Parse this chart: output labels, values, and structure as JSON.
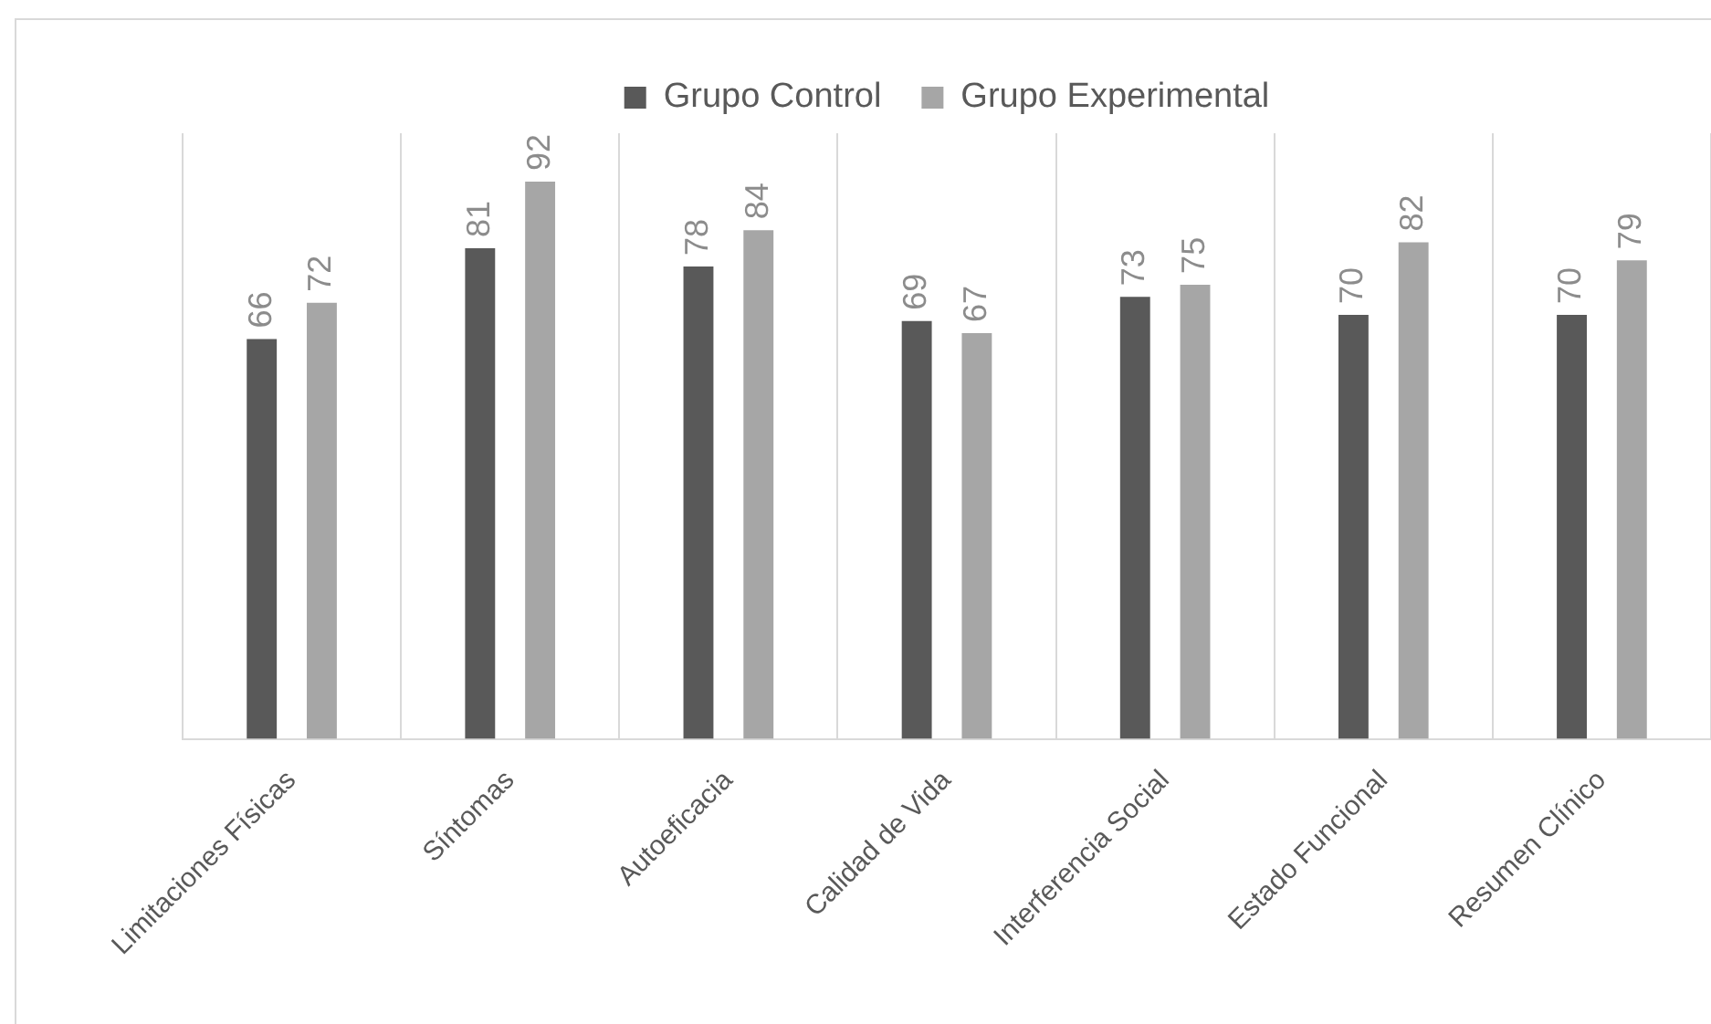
{
  "chart_data": {
    "type": "bar",
    "categories": [
      "Limitaciones Físicas",
      "Síntomas",
      "Autoeficacia",
      "Calidad de Vida",
      "Interferencia Social",
      "Estado Funcional",
      "Resumen Clínico"
    ],
    "series": [
      {
        "name": "Grupo Control",
        "color": "#595959",
        "values": [
          66,
          81,
          78,
          69,
          73,
          70,
          70
        ]
      },
      {
        "name": "Grupo Experimental",
        "color": "#a6a6a6",
        "values": [
          72,
          92,
          84,
          67,
          75,
          82,
          79
        ]
      }
    ],
    "ylim": [
      0,
      100
    ],
    "tick_labels": "x",
    "grid": "x",
    "legend": "top",
    "data_labels": true
  }
}
